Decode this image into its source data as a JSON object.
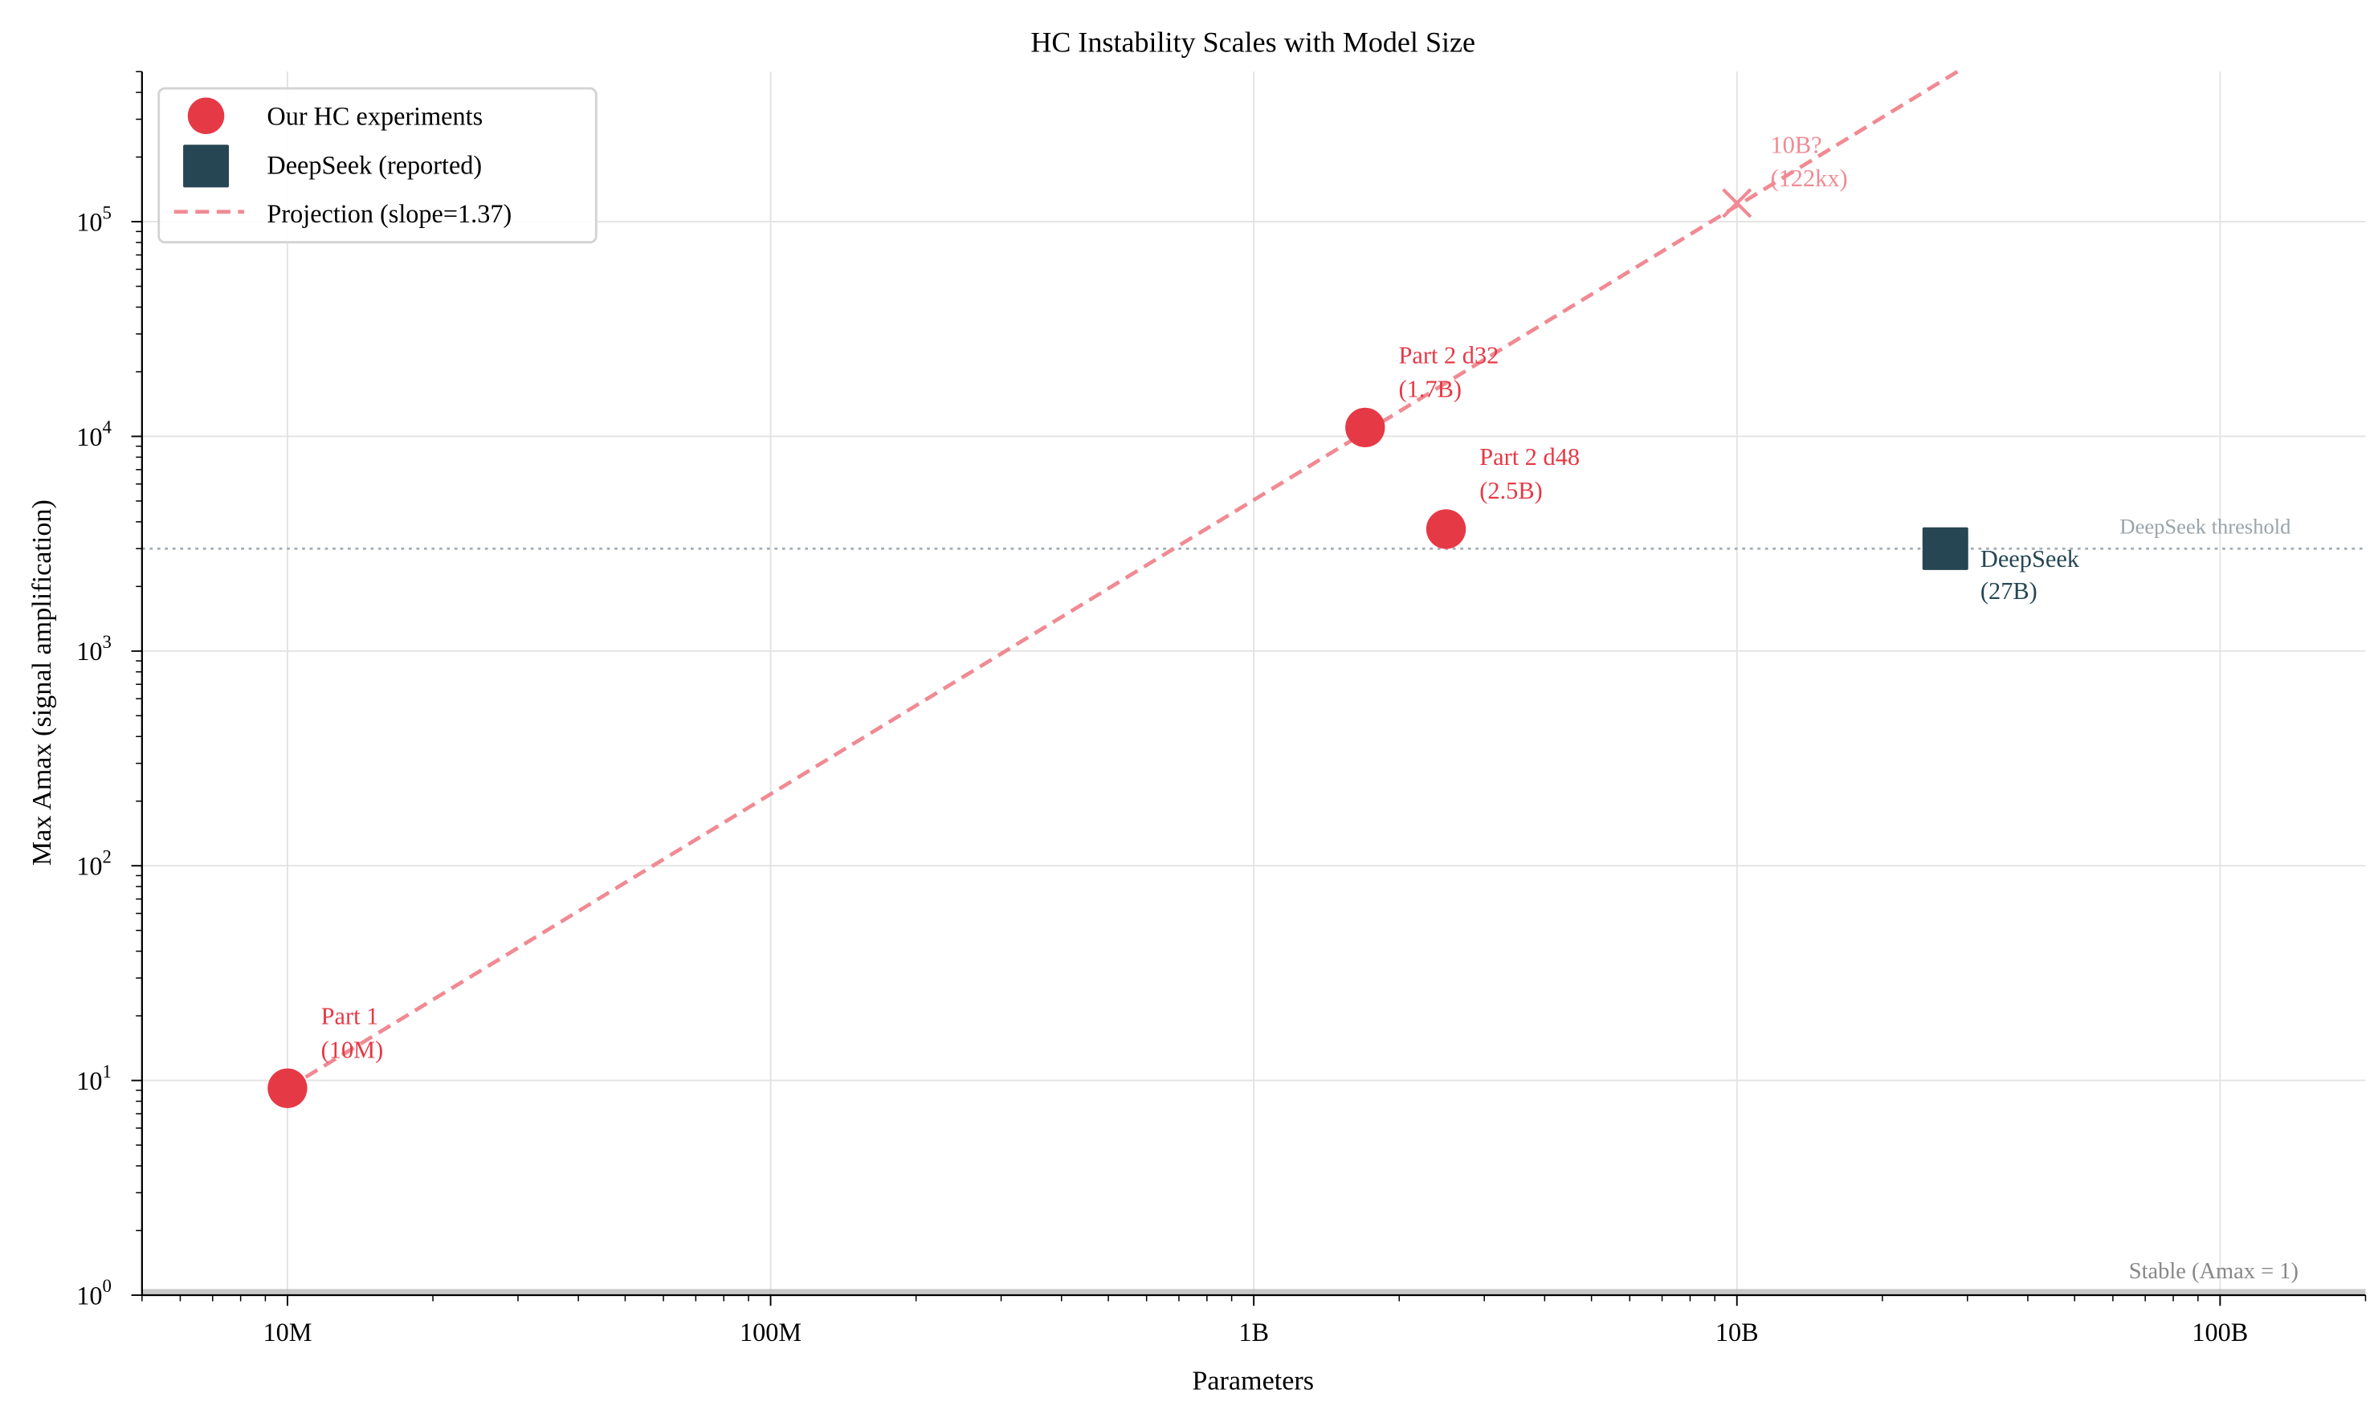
{
  "chart_data": {
    "type": "scatter",
    "title": "HC Instability Scales with Model Size",
    "xlabel": "Parameters",
    "ylabel": "Max Amax (signal amplification)",
    "xscale": "log",
    "yscale": "log",
    "xlim": [
      5000000,
      200000000000
    ],
    "ylim": [
      1,
      500000
    ],
    "grid": true,
    "legend_position": "top-left",
    "x_ticks": [
      {
        "value": 10000000,
        "label": "10M"
      },
      {
        "value": 100000000,
        "label": "100M"
      },
      {
        "value": 1000000000,
        "label": "1B"
      },
      {
        "value": 10000000000,
        "label": "10B"
      },
      {
        "value": 100000000000,
        "label": "100B"
      }
    ],
    "y_ticks": [
      {
        "value": 1,
        "base": "10",
        "exp": "0"
      },
      {
        "value": 10,
        "base": "10",
        "exp": "1"
      },
      {
        "value": 100,
        "base": "10",
        "exp": "2"
      },
      {
        "value": 1000,
        "base": "10",
        "exp": "3"
      },
      {
        "value": 10000,
        "base": "10",
        "exp": "4"
      },
      {
        "value": 100000,
        "base": "10",
        "exp": "5"
      }
    ],
    "series": [
      {
        "name": "Our HC experiments",
        "marker": "circle",
        "color": "#e63946",
        "points": [
          {
            "x": 10000000,
            "y": 9.2,
            "label1": "Part 1",
            "label2": "(10M)"
          },
          {
            "x": 1700000000,
            "y": 11000,
            "label1": "Part 2 d32",
            "label2": "(1.7B)"
          },
          {
            "x": 2500000000,
            "y": 3700,
            "label1": "Part 2 d48",
            "label2": "(2.5B)"
          }
        ]
      },
      {
        "name": "DeepSeek (reported)",
        "marker": "square",
        "color": "#264653",
        "points": [
          {
            "x": 27000000000,
            "y": 3000,
            "label1": "DeepSeek",
            "label2": "(27B)"
          }
        ]
      },
      {
        "name": "Projection (slope=1.37)",
        "type": "line",
        "style": "dashed",
        "color": "#f08a93",
        "slope": 1.37,
        "x_range": [
          10000000,
          30000000000
        ],
        "anchor": {
          "x": 10000000,
          "y": 9.2
        }
      }
    ],
    "projected_point": {
      "x": 10000000000,
      "y": 122000,
      "marker": "x",
      "color": "#f08a93",
      "label1": "10B?",
      "label2": "(122kx)"
    },
    "reference_lines": [
      {
        "y": 3000,
        "label": "DeepSeek threshold",
        "style": "dotted",
        "color": "#a5b0b6"
      },
      {
        "y": 1,
        "label": "Stable (Amax = 1)",
        "style": "solid",
        "color": "#999999"
      }
    ]
  }
}
